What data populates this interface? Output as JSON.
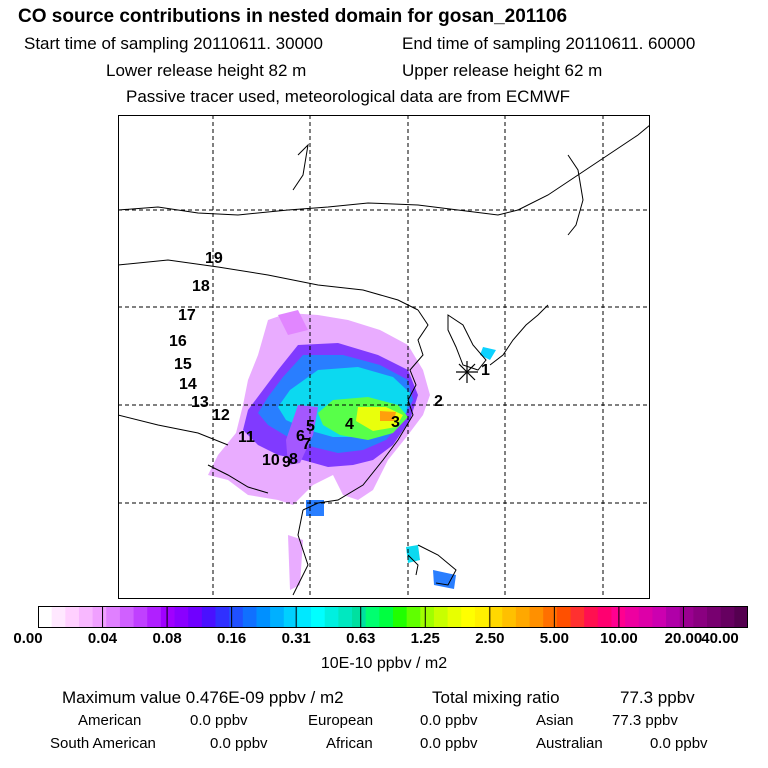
{
  "title": "CO  source contributions in nested domain for gosan_201106",
  "header": {
    "start_label": "Start time of sampling 20110611. 30000",
    "end_label": "End time of sampling 20110611. 60000",
    "lower_label": "Lower release height   82 m",
    "upper_label": "Upper release height   62 m",
    "tracer_label": "Passive tracer used, meteorological data are from ECMWF"
  },
  "map": {
    "region": "East Asia (nested domain)",
    "grid_lines": "dashed",
    "receptor_marker": "asterisk",
    "numbers": [
      "1",
      "2",
      "3",
      "4",
      "5",
      "6",
      "7",
      "8",
      "9",
      "10",
      "11",
      "12",
      "13",
      "14",
      "15",
      "16",
      "17",
      "18",
      "19"
    ]
  },
  "colorbar": {
    "ticks": [
      "0.00",
      "0.04",
      "0.08",
      "0.16",
      "0.31",
      "0.63",
      "1.25",
      "2.50",
      "5.00",
      "10.00",
      "20.00",
      "40.00"
    ],
    "colors": [
      "#ffffff",
      "#ffe8ff",
      "#ffd0ff",
      "#f8b8ff",
      "#f0a0ff",
      "#e080ff",
      "#d060ff",
      "#c040ff",
      "#b020ff",
      "#a000ff",
      "#8a00ff",
      "#7000ff",
      "#4a10ff",
      "#3030ff",
      "#2050ff",
      "#1070ff",
      "#0090ff",
      "#00b0ff",
      "#00d0ff",
      "#00e8ff",
      "#00ffff",
      "#00f0e0",
      "#00e8c0",
      "#00e0a0",
      "#00ff70",
      "#00ff40",
      "#20ff00",
      "#60ff00",
      "#a0ff00",
      "#c8ff00",
      "#e8ff00",
      "#ffff00",
      "#fff000",
      "#ffd800",
      "#ffc000",
      "#ffa800",
      "#ff9000",
      "#ff7000",
      "#ff5000",
      "#ff3030",
      "#ff1050",
      "#ff0070",
      "#ff0090",
      "#ee00a0",
      "#dd00a8",
      "#cc00b0",
      "#b000a8",
      "#9a0090",
      "#8a0080",
      "#780070",
      "#660060",
      "#550050"
    ],
    "units": "10E-10 ppbv / m2"
  },
  "summary": {
    "max_line": "Maximum value  0.476E-09 ppbv / m2",
    "total_label": "Total mixing ratio",
    "total_value": "77.3 ppbv",
    "regions": [
      {
        "name": "American",
        "value": "0.0 ppbv"
      },
      {
        "name": "European",
        "value": "0.0 ppbv"
      },
      {
        "name": "Asian",
        "value": "77.3 ppbv"
      },
      {
        "name": "South American",
        "value": "0.0 ppbv"
      },
      {
        "name": "African",
        "value": "0.0 ppbv"
      },
      {
        "name": "Australian",
        "value": "0.0 ppbv"
      }
    ]
  }
}
